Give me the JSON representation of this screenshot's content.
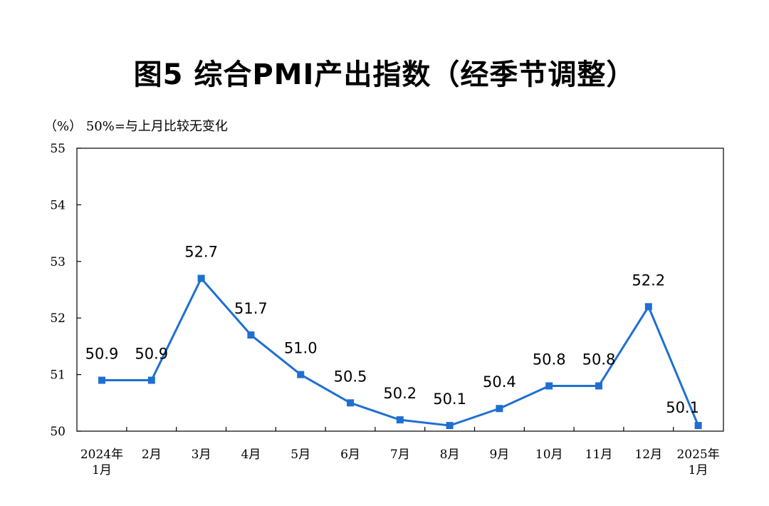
{
  "title": "图5 综合PMI产出指数（经季节调整）",
  "y_unit_note": "（%） 50%=与上月比较无变化",
  "series_color": "#1f6fd1",
  "chart_data": {
    "type": "line",
    "title": "图5 综合PMI产出指数（经季节调整）",
    "ylabel": "（%）",
    "note": "50%=与上月比较无变化",
    "ylim": [
      50,
      55
    ],
    "yticks": [
      "50",
      "51",
      "52",
      "53",
      "54",
      "55"
    ],
    "categories": [
      [
        "2024年",
        "1月"
      ],
      [
        "2月"
      ],
      [
        "3月"
      ],
      [
        "4月"
      ],
      [
        "5月"
      ],
      [
        "6月"
      ],
      [
        "7月"
      ],
      [
        "8月"
      ],
      [
        "9月"
      ],
      [
        "10月"
      ],
      [
        "11月"
      ],
      [
        "12月"
      ],
      [
        "2025年",
        "1月"
      ]
    ],
    "series": [
      {
        "values": [
          50.9,
          50.9,
          52.7,
          51.7,
          51.0,
          50.5,
          50.2,
          50.1,
          50.4,
          50.8,
          50.8,
          52.2,
          50.1
        ],
        "labels": [
          "50.9",
          "50.9",
          "52.7",
          "51.7",
          "51.0",
          "50.5",
          "50.2",
          "50.1",
          "50.4",
          "50.8",
          "50.8",
          "52.2",
          "50.1"
        ]
      }
    ],
    "grid": false,
    "markers": "square"
  }
}
